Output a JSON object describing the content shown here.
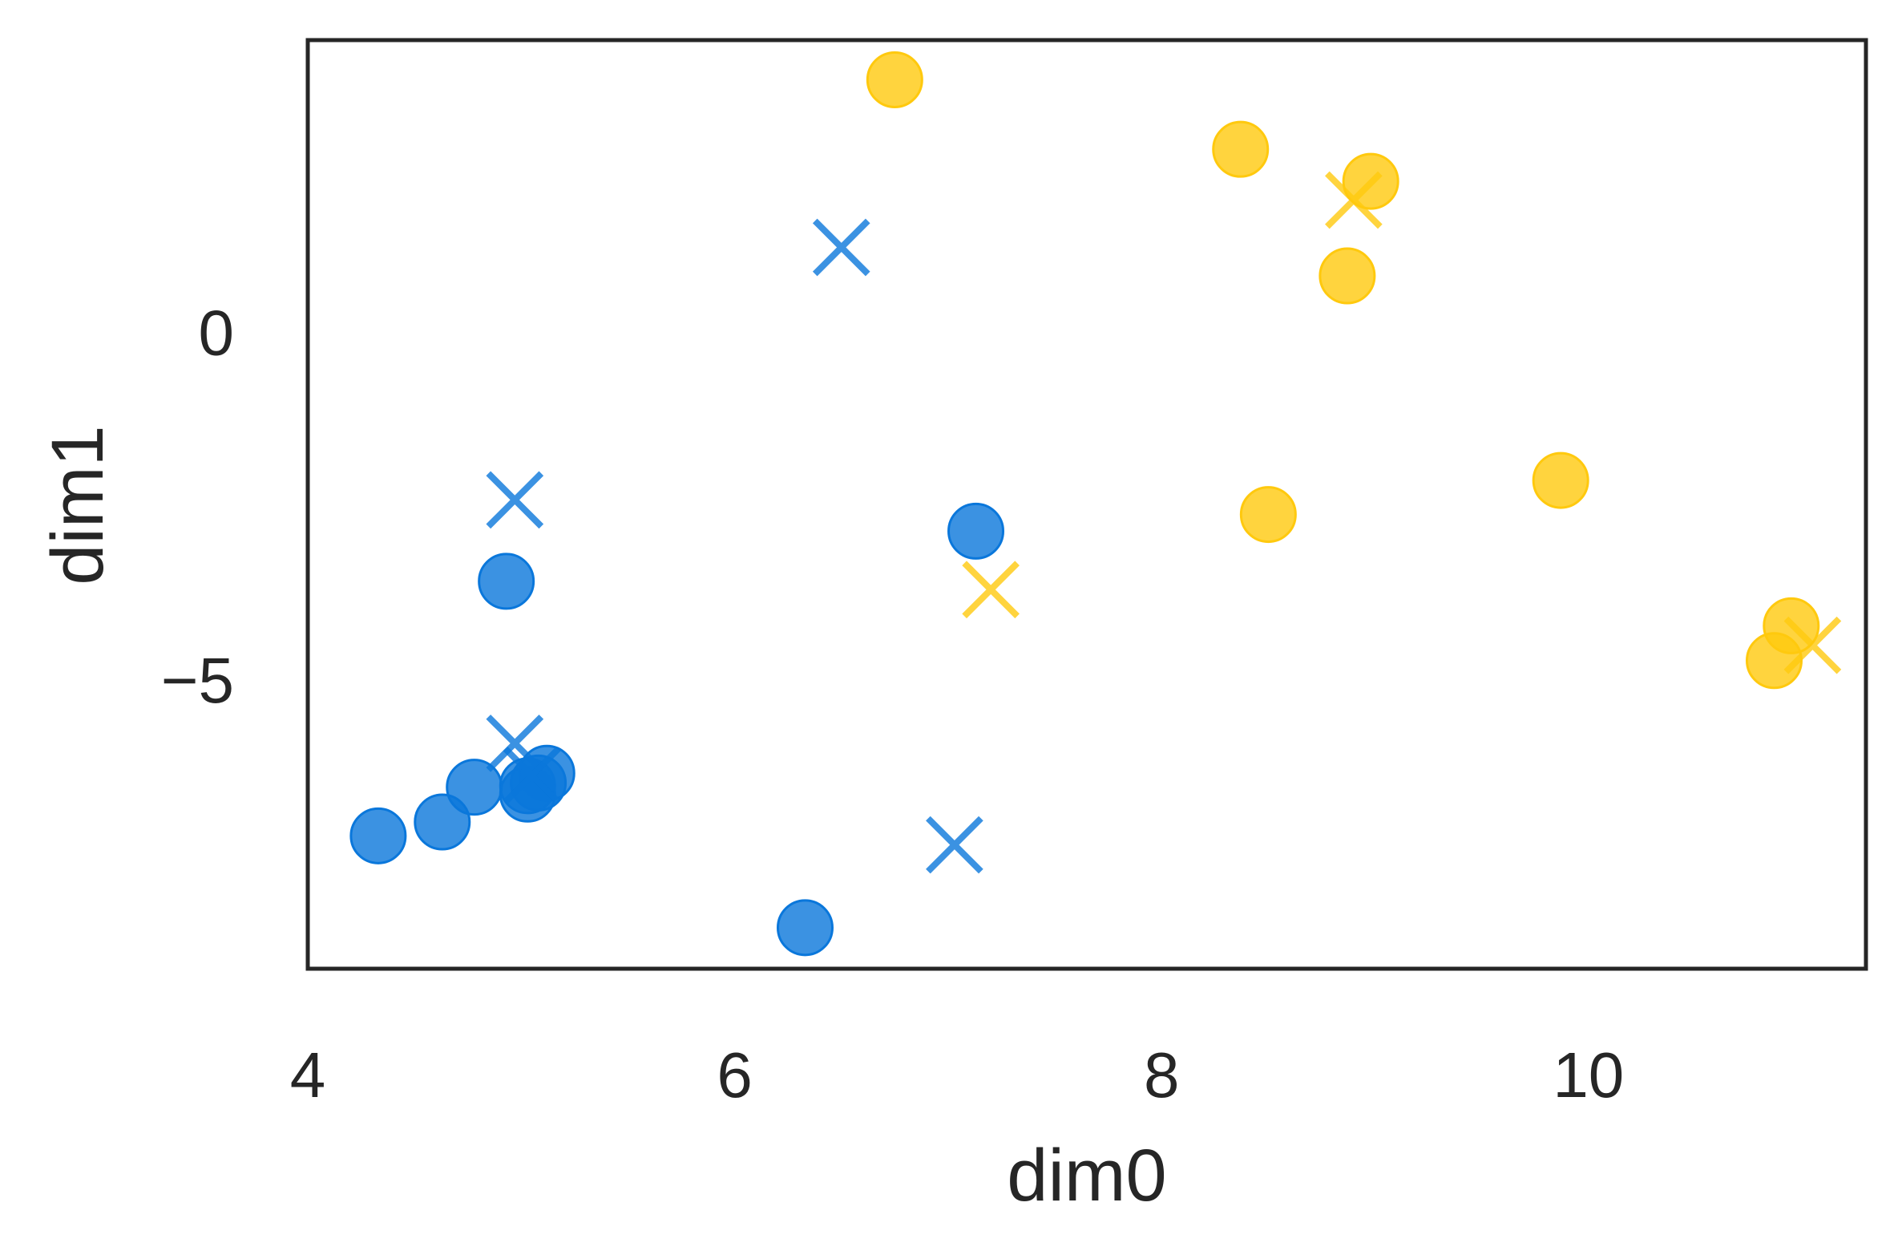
{
  "chart_data": {
    "type": "scatter",
    "xlabel": "dim0",
    "ylabel": "dim1",
    "xlim": [
      4.0,
      11.3
    ],
    "ylim": [
      -9.15,
      4.2
    ],
    "xticks": [
      {
        "value": 4,
        "label": "4"
      },
      {
        "value": 6,
        "label": "6"
      },
      {
        "value": 8,
        "label": "8"
      },
      {
        "value": 10,
        "label": "10"
      }
    ],
    "yticks": [
      {
        "value": 0,
        "label": "0"
      },
      {
        "value": -5,
        "label": "−5"
      }
    ],
    "grid": false,
    "legend": "none",
    "series": [
      {
        "color": "#0a77db",
        "marker": "circle",
        "points": [
          [
            4.33,
            -7.24
          ],
          [
            4.63,
            -7.04
          ],
          [
            4.78,
            -6.54
          ],
          [
            4.93,
            -3.58
          ],
          [
            5.03,
            -6.52
          ],
          [
            5.03,
            -6.64
          ],
          [
            5.08,
            -6.48
          ],
          [
            5.12,
            -6.34
          ],
          [
            6.33,
            -8.56
          ],
          [
            7.13,
            -2.86
          ]
        ]
      },
      {
        "color": "#0a77db",
        "marker": "x",
        "points": [
          [
            4.97,
            -2.41
          ],
          [
            4.97,
            -5.91
          ],
          [
            5.05,
            -6.37
          ],
          [
            6.5,
            1.22
          ],
          [
            7.03,
            -7.37
          ]
        ]
      },
      {
        "color": "#ffc90e",
        "marker": "circle",
        "points": [
          [
            6.75,
            3.63
          ],
          [
            8.37,
            2.63
          ],
          [
            8.5,
            -2.62
          ],
          [
            8.87,
            0.81
          ],
          [
            8.98,
            2.17
          ],
          [
            9.87,
            -2.13
          ],
          [
            10.87,
            -4.72
          ],
          [
            10.95,
            -4.22
          ]
        ]
      },
      {
        "color": "#ffc90e",
        "marker": "x",
        "points": [
          [
            7.2,
            -3.7
          ],
          [
            8.9,
            1.9
          ],
          [
            11.05,
            -4.5
          ]
        ]
      }
    ]
  }
}
